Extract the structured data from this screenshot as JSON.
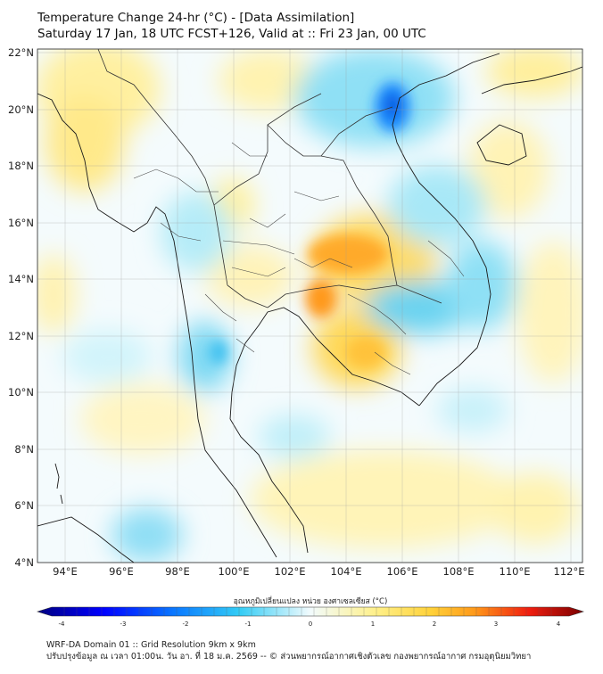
{
  "title": {
    "line1": "Temperature Change 24-hr (°C) - [Data Assimilation]",
    "line2": "Saturday 17 Jan, 18 UTC FCST+126, Valid at :: Fri 23 Jan, 00 UTC"
  },
  "map": {
    "lat_labels": [
      "22°N",
      "20°N",
      "18°N",
      "16°N",
      "14°N",
      "12°N",
      "10°N",
      "8°N",
      "6°N",
      "4°N"
    ],
    "lon_labels": [
      "94°E",
      "96°E",
      "98°E",
      "100°E",
      "102°E",
      "104°E",
      "106°E",
      "108°E",
      "110°E",
      "112°E"
    ],
    "lat_range": [
      4,
      22.3
    ],
    "lon_range": [
      93,
      112.4
    ]
  },
  "colorbar": {
    "label": "อุณหภูมิเปลี่ยนแปลง หน่วย องศาเซลเซียส (°C)",
    "ticks": [
      "-4",
      "-3",
      "-2",
      "-1",
      "0",
      "1",
      "2",
      "3",
      "4"
    ],
    "min": -4,
    "max": 4
  },
  "footer": {
    "line1": "WRF-DA Domain 01 :: Grid Resolution 9km x 9km",
    "line2": "ปรับปรุงข้อมูล ณ เวลา 01:00น. วัน อา. ที่ 18 ม.ค. 2569 -- © ส่วนพยากรณ์อากาศเชิงตัวเลข กองพยากรณ์อากาศ กรมอุตุนิยมวิทยา"
  },
  "colors": {
    "cold_deep": "#00008b",
    "cold": "#1e90ff",
    "cool": "#5fd4f0",
    "neutral": "#f4fbfc",
    "warm": "#ffe55c",
    "hot": "#ff9a1a",
    "very_hot": "#e01010"
  }
}
